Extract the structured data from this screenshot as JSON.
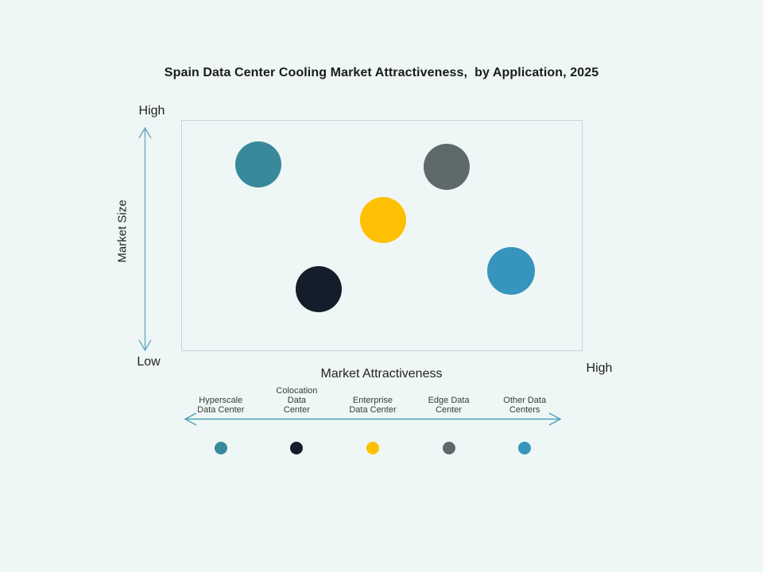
{
  "title": "Spain Data Center Cooling Market Attractiveness,  by Application, 2025",
  "axes": {
    "y": {
      "label": "Market Size",
      "top": "High",
      "bottom": "Low"
    },
    "x": {
      "label": "Market Attractiveness",
      "right": "High"
    }
  },
  "chart_data": {
    "type": "scatter",
    "title": "Spain Data Center Cooling Market Attractiveness,  by Application, 2025",
    "xlabel": "Market Attractiveness",
    "ylabel": "Market Size",
    "x_range": [
      0,
      1
    ],
    "y_range": [
      0,
      1
    ],
    "x_axis_endpoints": {
      "high": "High"
    },
    "y_axis_endpoints": {
      "low": "Low",
      "high": "High"
    },
    "grid": false,
    "legend_position": "bottom",
    "series": [
      {
        "name": "Hyperscale Data Center",
        "x": 0.19,
        "y": 0.81,
        "radius_px": 29,
        "color": "#38899B"
      },
      {
        "name": "Colocation Data Center",
        "x": 0.34,
        "y": 0.27,
        "radius_px": 29,
        "color": "#141E2A"
      },
      {
        "name": "Enterprise Data Center",
        "x": 0.5,
        "y": 0.57,
        "radius_px": 29,
        "color": "#FFC004"
      },
      {
        "name": "Edge Data Center",
        "x": 0.66,
        "y": 0.8,
        "radius_px": 29,
        "color": "#5D696B"
      },
      {
        "name": "Other Data Centers",
        "x": 0.82,
        "y": 0.35,
        "radius_px": 30,
        "color": "#3794BD"
      }
    ]
  },
  "legend": {
    "items": [
      {
        "label": "Hyperscale Data Center",
        "lines": [
          "Hyperscale",
          "Data Center"
        ],
        "color": "#38899B"
      },
      {
        "label": "Colocation Data Center",
        "lines": [
          "Colocation",
          "Data",
          "Center"
        ],
        "color": "#141E2A"
      },
      {
        "label": "Enterprise Data Center",
        "lines": [
          "Enterprise",
          "Data Center"
        ],
        "color": "#FFC004"
      },
      {
        "label": "Edge Data Center",
        "lines": [
          "Edge Data",
          "Center"
        ],
        "color": "#5D696B"
      },
      {
        "label": "Other Data Centers",
        "lines": [
          "Other Data",
          "Centers"
        ],
        "color": "#3794BD"
      }
    ]
  },
  "colors": {
    "background": "#EEF7F5",
    "plot_border": "#C9D2D7",
    "y_axis_arrow": "#69A8C5",
    "legend_arrow": "#4BA0B8",
    "title_text": "#1B1B1B",
    "label_text": "#3A3A3A"
  }
}
